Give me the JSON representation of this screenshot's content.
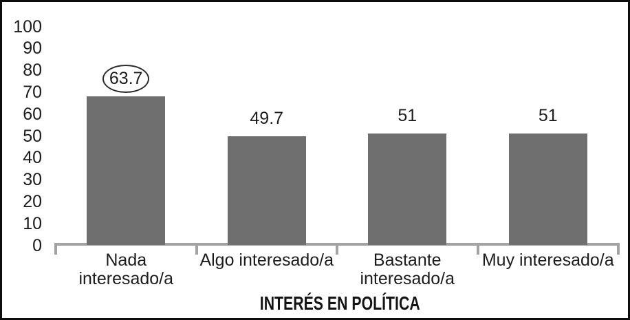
{
  "chart_data": {
    "type": "bar",
    "title": "",
    "xlabel": "INTERÉS EN POLÍTICA",
    "ylabel": "",
    "ylim": [
      0,
      100
    ],
    "y_ticks": [
      0,
      10,
      20,
      30,
      40,
      50,
      60,
      70,
      80,
      90,
      100
    ],
    "categories": [
      "Nada interesado/a",
      "Algo interesado/a",
      "Bastante interesado/a",
      "Muy interesado/a"
    ],
    "category_label_lines": [
      [
        "Nada",
        "interesado/a"
      ],
      [
        "Algo interesado/a"
      ],
      [
        "Bastante",
        "interesado/a"
      ],
      [
        "Muy interesado/a"
      ]
    ],
    "values": [
      63.7,
      49.7,
      51,
      51
    ],
    "value_labels": [
      "63.7",
      "49.7",
      "51",
      "51"
    ],
    "drawn_heights": [
      67.9,
      49.7,
      51,
      51
    ],
    "circled_value_index": 0,
    "grid": false,
    "legend": false,
    "colors": {
      "bar": "#6f6f6f",
      "axis": "#a3a3a3",
      "text": "#1c1c1c",
      "frame_border": "#0d0d0d",
      "annotation_ellipse": "#2b2b2b"
    }
  }
}
